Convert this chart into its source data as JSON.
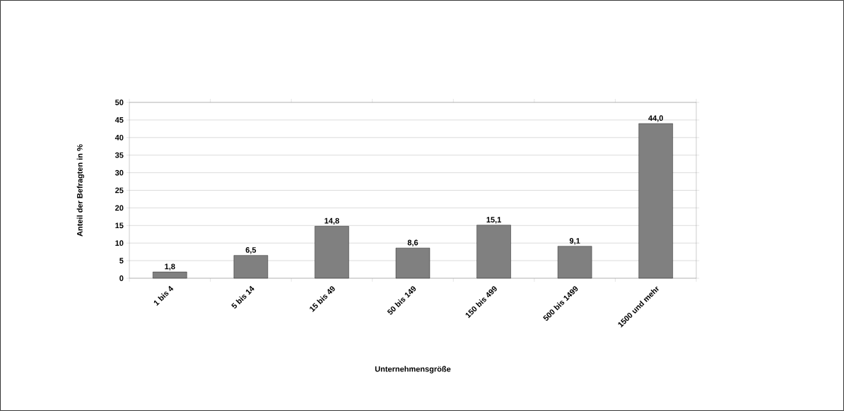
{
  "chart_data": {
    "type": "bar",
    "xlabel": "Unternehmensgröße",
    "ylabel": "Anteil der Befragten in %",
    "categories": [
      "1 bis 4",
      "5 bis 14",
      "15 bis 49",
      "50 bis 149",
      "150 bis 499",
      "500 bis 1499",
      "1500 und mehr"
    ],
    "values": [
      1.8,
      6.5,
      14.8,
      8.6,
      15.1,
      9.1,
      44.0
    ],
    "value_labels": [
      "1,8",
      "6,5",
      "14,8",
      "8,6",
      "15,1",
      "9,1",
      "44,0"
    ],
    "color": "#808080",
    "ylim": [
      0,
      50
    ],
    "yticks": [
      0,
      5,
      10,
      15,
      20,
      25,
      30,
      35,
      40,
      45,
      50
    ],
    "grid": "y"
  }
}
